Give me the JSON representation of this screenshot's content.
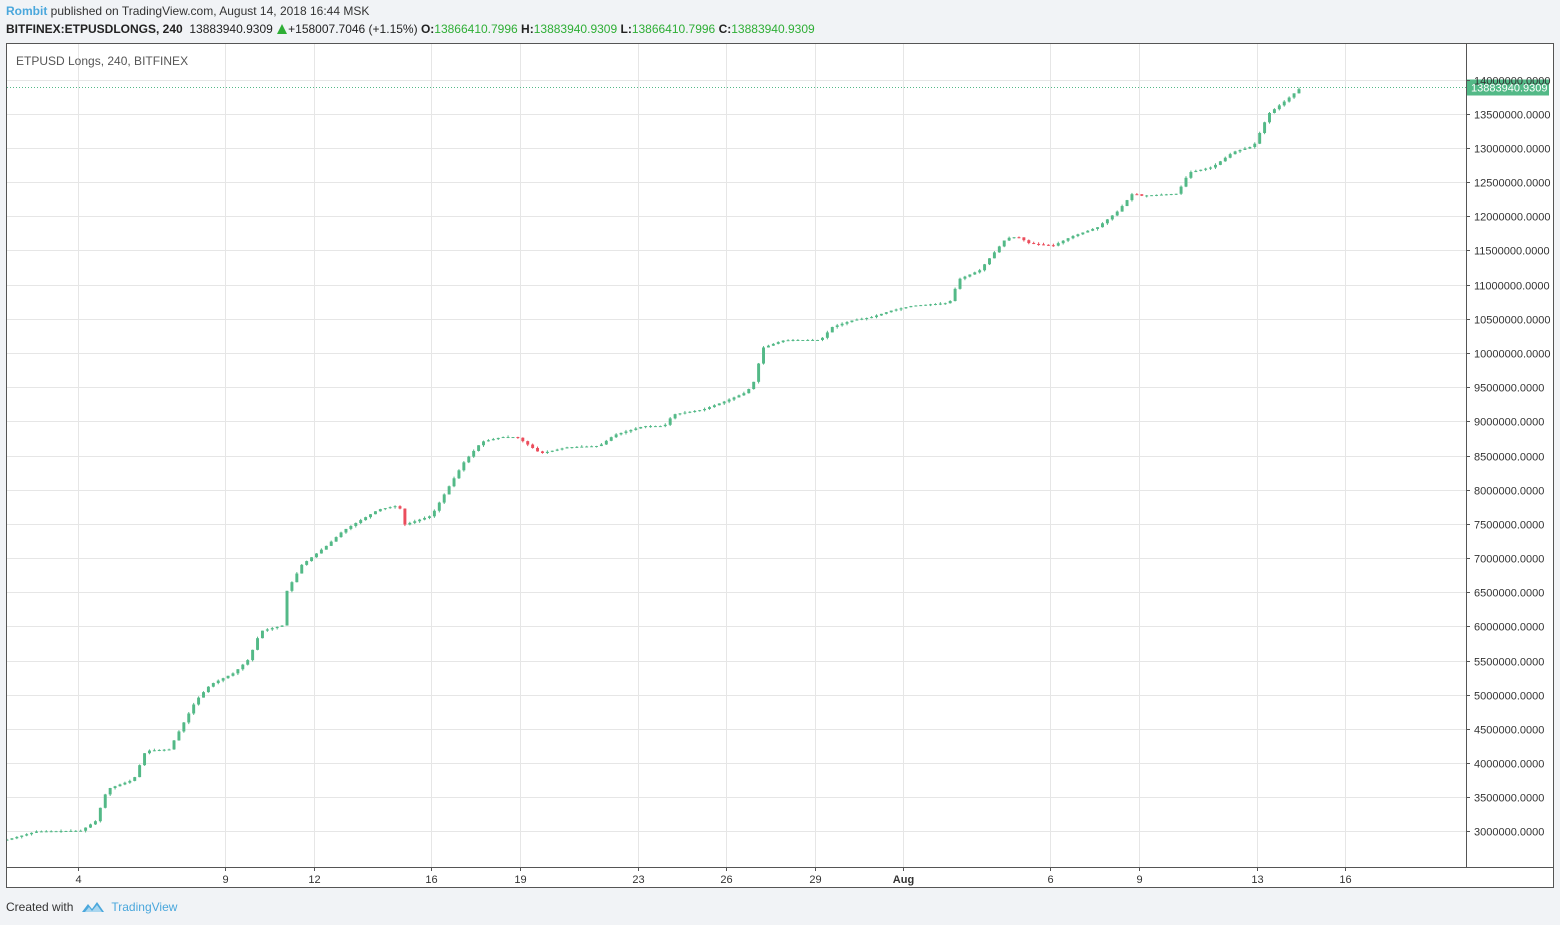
{
  "header": {
    "author": "Rombit",
    "published_text": "published on TradingView.com, August 14, 2018 16:44 MSK",
    "symbol": "BITFINEX:ETPUSDLONGS, 240",
    "last_price": "13883940.9309",
    "change": "+158007.7046 (+1.15%)",
    "o_label": "O:",
    "o_value": "13866410.7996",
    "h_label": "H:",
    "h_value": "13883940.9309",
    "l_label": "L:",
    "l_value": "13866410.7996",
    "c_label": "C:",
    "c_value": "13883940.9309"
  },
  "footer": {
    "created_with": "Created with",
    "brand": "TradingView"
  },
  "colors": {
    "up": "#53b987",
    "down": "#eb4d5c",
    "accent": "#4aa7dc",
    "grid": "#e6e6e6"
  },
  "chart_data": {
    "type": "candlestick",
    "title": "ETPUSD Longs, 240, BITFINEX",
    "last_price_label": "13883940.9309",
    "last_price": 13883940.9309,
    "y_ticks": [
      3000000,
      3500000,
      4000000,
      4500000,
      5000000,
      5500000,
      6000000,
      6500000,
      7000000,
      7500000,
      8000000,
      8500000,
      9000000,
      9500000,
      10000000,
      10500000,
      11000000,
      11500000,
      12000000,
      12500000,
      13000000,
      13500000,
      14000000
    ],
    "y_tick_labels": [
      "3000000.0000",
      "3500000.0000",
      "4000000.0000",
      "4500000.0000",
      "5000000.0000",
      "5500000.0000",
      "6000000.0000",
      "6500000.0000",
      "7000000.0000",
      "7500000.0000",
      "8000000.0000",
      "8500000.0000",
      "9000000.0000",
      "9500000.0000",
      "10000000.0000",
      "10500000.0000",
      "11000000.0000",
      "11500000.0000",
      "12000000.0000",
      "12500000.0000",
      "13000000.0000",
      "13500000.0000",
      "14000000.0000"
    ],
    "ylim": [
      2480000,
      14520000
    ],
    "xlim": [
      0,
      49.5
    ],
    "x_ticks": [
      {
        "day": 2.4,
        "label": "4",
        "bold": false
      },
      {
        "day": 7.4,
        "label": "9",
        "bold": false
      },
      {
        "day": 10.4,
        "label": "12",
        "bold": false
      },
      {
        "day": 14.4,
        "label": "16",
        "bold": false
      },
      {
        "day": 17.4,
        "label": "19",
        "bold": false
      },
      {
        "day": 21.4,
        "label": "23",
        "bold": false
      },
      {
        "day": 24.4,
        "label": "26",
        "bold": false
      },
      {
        "day": 27.4,
        "label": "29",
        "bold": false
      },
      {
        "day": 30.4,
        "label": "Aug",
        "bold": true
      },
      {
        "day": 35.4,
        "label": "6",
        "bold": false
      },
      {
        "day": 38.4,
        "label": "9",
        "bold": false
      },
      {
        "day": 42.4,
        "label": "13",
        "bold": false
      },
      {
        "day": 45.4,
        "label": "16",
        "bold": false
      }
    ],
    "anchors": [
      [
        0.0,
        2880000
      ],
      [
        1.0,
        3000000
      ],
      [
        2.5,
        3010000
      ],
      [
        3.0,
        3150000
      ],
      [
        3.4,
        3620000
      ],
      [
        4.3,
        3760000
      ],
      [
        4.7,
        4180000
      ],
      [
        5.5,
        4200000
      ],
      [
        6.4,
        4910000
      ],
      [
        6.9,
        5150000
      ],
      [
        7.7,
        5320000
      ],
      [
        8.2,
        5520000
      ],
      [
        8.6,
        5930000
      ],
      [
        9.4,
        6020000
      ],
      [
        9.5,
        6520000
      ],
      [
        10.0,
        6900000
      ],
      [
        10.9,
        7200000
      ],
      [
        11.4,
        7400000
      ],
      [
        12.6,
        7710000
      ],
      [
        13.3,
        7770000
      ],
      [
        13.5,
        7490000
      ],
      [
        14.4,
        7620000
      ],
      [
        15.0,
        8050000
      ],
      [
        15.5,
        8400000
      ],
      [
        16.1,
        8700000
      ],
      [
        16.8,
        8770000
      ],
      [
        17.3,
        8770000
      ],
      [
        18.1,
        8530000
      ],
      [
        19.0,
        8620000
      ],
      [
        20.1,
        8640000
      ],
      [
        20.6,
        8800000
      ],
      [
        21.6,
        8930000
      ],
      [
        22.3,
        8930000
      ],
      [
        22.6,
        9100000
      ],
      [
        23.6,
        9170000
      ],
      [
        24.4,
        9300000
      ],
      [
        25.1,
        9430000
      ],
      [
        25.4,
        9620000
      ],
      [
        25.6,
        10070000
      ],
      [
        26.3,
        10180000
      ],
      [
        26.6,
        10190000
      ],
      [
        27.6,
        10190000
      ],
      [
        28.0,
        10380000
      ],
      [
        28.7,
        10480000
      ],
      [
        29.3,
        10520000
      ],
      [
        30.0,
        10620000
      ],
      [
        30.7,
        10690000
      ],
      [
        31.9,
        10730000
      ],
      [
        32.0,
        10760000
      ],
      [
        32.3,
        11080000
      ],
      [
        33.0,
        11210000
      ],
      [
        33.4,
        11420000
      ],
      [
        33.9,
        11680000
      ],
      [
        34.3,
        11700000
      ],
      [
        34.7,
        11600000
      ],
      [
        35.5,
        11570000
      ],
      [
        36.1,
        11700000
      ],
      [
        37.0,
        11840000
      ],
      [
        37.7,
        12080000
      ],
      [
        38.2,
        12340000
      ],
      [
        38.5,
        12300000
      ],
      [
        39.7,
        12330000
      ],
      [
        40.1,
        12640000
      ],
      [
        40.9,
        12720000
      ],
      [
        41.6,
        12940000
      ],
      [
        42.3,
        13030000
      ],
      [
        42.8,
        13500000
      ],
      [
        43.4,
        13700000
      ],
      [
        43.9,
        13884000
      ]
    ],
    "candles_per_day": 6
  }
}
